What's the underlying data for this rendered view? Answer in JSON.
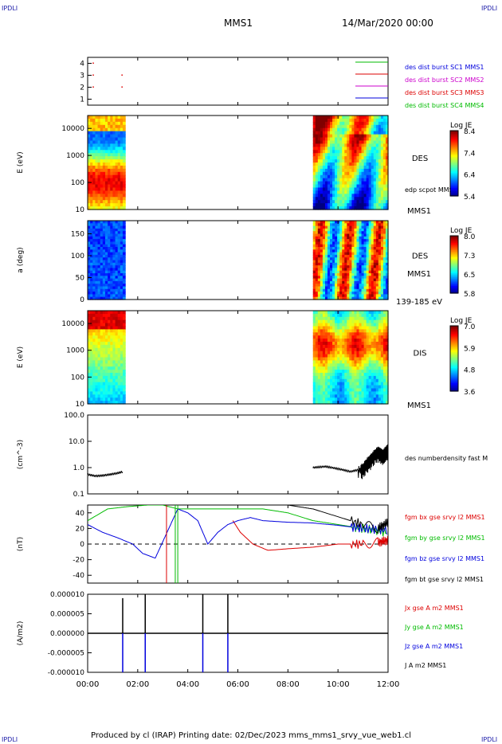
{
  "corner_tag": "IPDLI",
  "header": {
    "spacecraft": "MMS1",
    "date": "14/Mar/2020 00:00"
  },
  "footer": {
    "text": "Produced by cl (IRAP)   Printing date: 02/Dec/2023   mms_mms1_srvy_vue_web1.cl"
  },
  "colors": {
    "red": "#dd0000",
    "green": "#00bb00",
    "blue": "#0000dd",
    "magenta": "#cc00cc",
    "black": "#000000"
  },
  "chart_data": [
    {
      "type": "scatter",
      "panel": "burst",
      "ylim": [
        0.5,
        4.5
      ],
      "yticks": [
        "1",
        "2",
        "3",
        "4"
      ],
      "legend": [
        {
          "label": "des dist burst SC1 MMS1",
          "color": "#0000dd"
        },
        {
          "label": "des dist burst SC2 MMS2",
          "color": "#cc00cc"
        },
        {
          "label": "des dist burst SC3 MMS3",
          "color": "#dd0000"
        },
        {
          "label": "des dist burst SC4 MMS4",
          "color": "#00bb00"
        }
      ],
      "points": [
        {
          "t": 0.2,
          "y": 3
        },
        {
          "t": 0.2,
          "y": 2
        },
        {
          "t": 1.35,
          "y": 3
        },
        {
          "t": 1.35,
          "y": 2
        },
        {
          "t": 0.2,
          "y": 4
        }
      ]
    },
    {
      "type": "heatmap",
      "panel": "des_energy",
      "ylabel": "E (eV)",
      "yscale": "log",
      "ylim": [
        10,
        30000
      ],
      "yticks": [
        "10",
        "100",
        "1000",
        "10000"
      ],
      "data_intervals": [
        [
          0,
          1.5
        ],
        [
          9,
          12
        ]
      ],
      "label": "DES",
      "side_labels": [
        "edp scpot MMS1",
        "MMS1"
      ],
      "colorbar": {
        "title": "Log JE",
        "ticks": [
          "8.4",
          "7.4",
          "6.4",
          "5.4"
        ],
        "range": [
          5.4,
          8.4
        ]
      }
    },
    {
      "type": "heatmap",
      "panel": "des_pitch",
      "ylabel": "a (deg)",
      "ylim": [
        0,
        180
      ],
      "yticks": [
        "0",
        "50",
        "100",
        "150"
      ],
      "data_intervals": [
        [
          0,
          1.5
        ],
        [
          9,
          12
        ]
      ],
      "label": "DES",
      "side_labels": [
        "MMS1",
        "139-185 eV"
      ],
      "colorbar": {
        "title": "Log JE",
        "ticks": [
          "8.0",
          "7.3",
          "6.5",
          "5.8"
        ],
        "range": [
          5.8,
          8.0
        ]
      }
    },
    {
      "type": "heatmap",
      "panel": "dis_energy",
      "ylabel": "E (eV)",
      "yscale": "log",
      "ylim": [
        10,
        30000
      ],
      "yticks": [
        "10",
        "100",
        "1000",
        "10000"
      ],
      "data_intervals": [
        [
          0,
          1.5
        ],
        [
          9,
          12
        ]
      ],
      "label": "DIS",
      "side_labels": [
        "MMS1"
      ],
      "colorbar": {
        "title": "Log JE",
        "ticks": [
          "7.0",
          "5.9",
          "4.8",
          "3.6"
        ],
        "range": [
          3.6,
          7.0
        ]
      }
    },
    {
      "type": "line",
      "panel": "density",
      "ylabel": "(cm^-3)",
      "yscale": "log",
      "ylim": [
        0.1,
        100
      ],
      "yticks": [
        "0.1",
        "1.0",
        "10.0",
        "100.0"
      ],
      "series": [
        {
          "name": "des numberdensity fast M",
          "color": "#000000",
          "segments": [
            {
              "t": [
                0.0,
                0.3,
                0.6,
                0.9,
                1.2,
                1.4
              ],
              "y": [
                0.55,
                0.48,
                0.5,
                0.55,
                0.62,
                0.7
              ]
            },
            {
              "t": [
                9.0,
                9.5,
                10.0,
                10.5,
                11.0,
                11.3,
                11.6,
                11.8,
                12.0
              ],
              "y": [
                1.0,
                1.1,
                0.9,
                0.7,
                0.9,
                2.0,
                4.0,
                3.0,
                5.0
              ]
            }
          ]
        }
      ]
    },
    {
      "type": "line",
      "panel": "magnetic_field",
      "ylabel": "(nT)",
      "ylim": [
        -50,
        50
      ],
      "yticks": [
        "-40",
        "-20",
        "0",
        "20",
        "40"
      ],
      "series": [
        {
          "name": "fgm bx gse srvy l2 MMS1",
          "color": "#dd0000",
          "t": [
            5.8,
            6.1,
            6.6,
            7.2,
            8.0,
            9.0,
            10.0,
            11.0,
            11.6,
            12.0
          ],
          "y": [
            30,
            15,
            0,
            -8,
            -6,
            -4,
            0,
            0,
            2,
            5
          ]
        },
        {
          "name": "fgm by gse srvy l2 MMS1",
          "color": "#00bb00",
          "t": [
            0.0,
            0.8,
            1.6,
            2.4,
            3.0,
            3.6,
            5.0,
            7.0,
            8.0,
            9.0,
            10.0,
            11.0,
            12.0
          ],
          "y": [
            30,
            45,
            48,
            50,
            50,
            45,
            45,
            45,
            40,
            30,
            25,
            20,
            15
          ]
        },
        {
          "name": "fgm bz gse srvy l2 MMS1",
          "color": "#0000dd",
          "t": [
            0.0,
            0.6,
            1.2,
            1.8,
            2.2,
            2.7,
            3.1,
            3.6,
            4.0,
            4.4,
            4.8,
            5.2,
            5.6,
            6.0,
            6.5,
            7.0,
            8.0,
            9.0,
            10.0,
            11.0,
            12.0
          ],
          "y": [
            25,
            15,
            8,
            0,
            -12,
            -18,
            10,
            45,
            40,
            30,
            0,
            15,
            25,
            30,
            34,
            30,
            28,
            27,
            24,
            20,
            18
          ]
        },
        {
          "name": "fgm bt gse srvy l2 MMS1",
          "color": "#000000",
          "t": [
            8.0,
            9.0,
            10.0,
            11.0,
            11.6,
            12.0
          ],
          "y": [
            50,
            45,
            35,
            25,
            20,
            28
          ]
        }
      ]
    },
    {
      "type": "line",
      "panel": "current_density",
      "ylabel": "(A/m2)",
      "ylim": [
        -0.0001,
        0.0001
      ],
      "yticks": [
        "-0.000010",
        "-0.000005",
        "0.000000",
        "0.000005",
        "0.000010"
      ],
      "series": [
        {
          "name": "Jx gse A m2 MMS1",
          "color": "#dd0000"
        },
        {
          "name": "Jy gse A m2 MMS1",
          "color": "#00bb00"
        },
        {
          "name": "Jz gse A m2 MMS1",
          "color": "#0000dd"
        },
        {
          "name": "J A m2 MMS1",
          "color": "#000000"
        }
      ],
      "spikes": [
        {
          "t": 1.4,
          "y": 9e-06
        },
        {
          "t": 1.4,
          "y": -1e-05
        },
        {
          "t": 2.3,
          "y": 1e-05
        },
        {
          "t": 2.3,
          "y": -1e-05
        },
        {
          "t": 4.6,
          "y": 1e-05
        },
        {
          "t": 4.6,
          "y": -1e-05
        },
        {
          "t": 5.6,
          "y": 1e-05
        },
        {
          "t": 5.6,
          "y": -1e-05
        }
      ]
    }
  ],
  "x_axis": {
    "range": [
      0,
      12
    ],
    "ticks": [
      "00:00",
      "02:00",
      "04:00",
      "06:00",
      "08:00",
      "10:00",
      "12:00"
    ]
  }
}
